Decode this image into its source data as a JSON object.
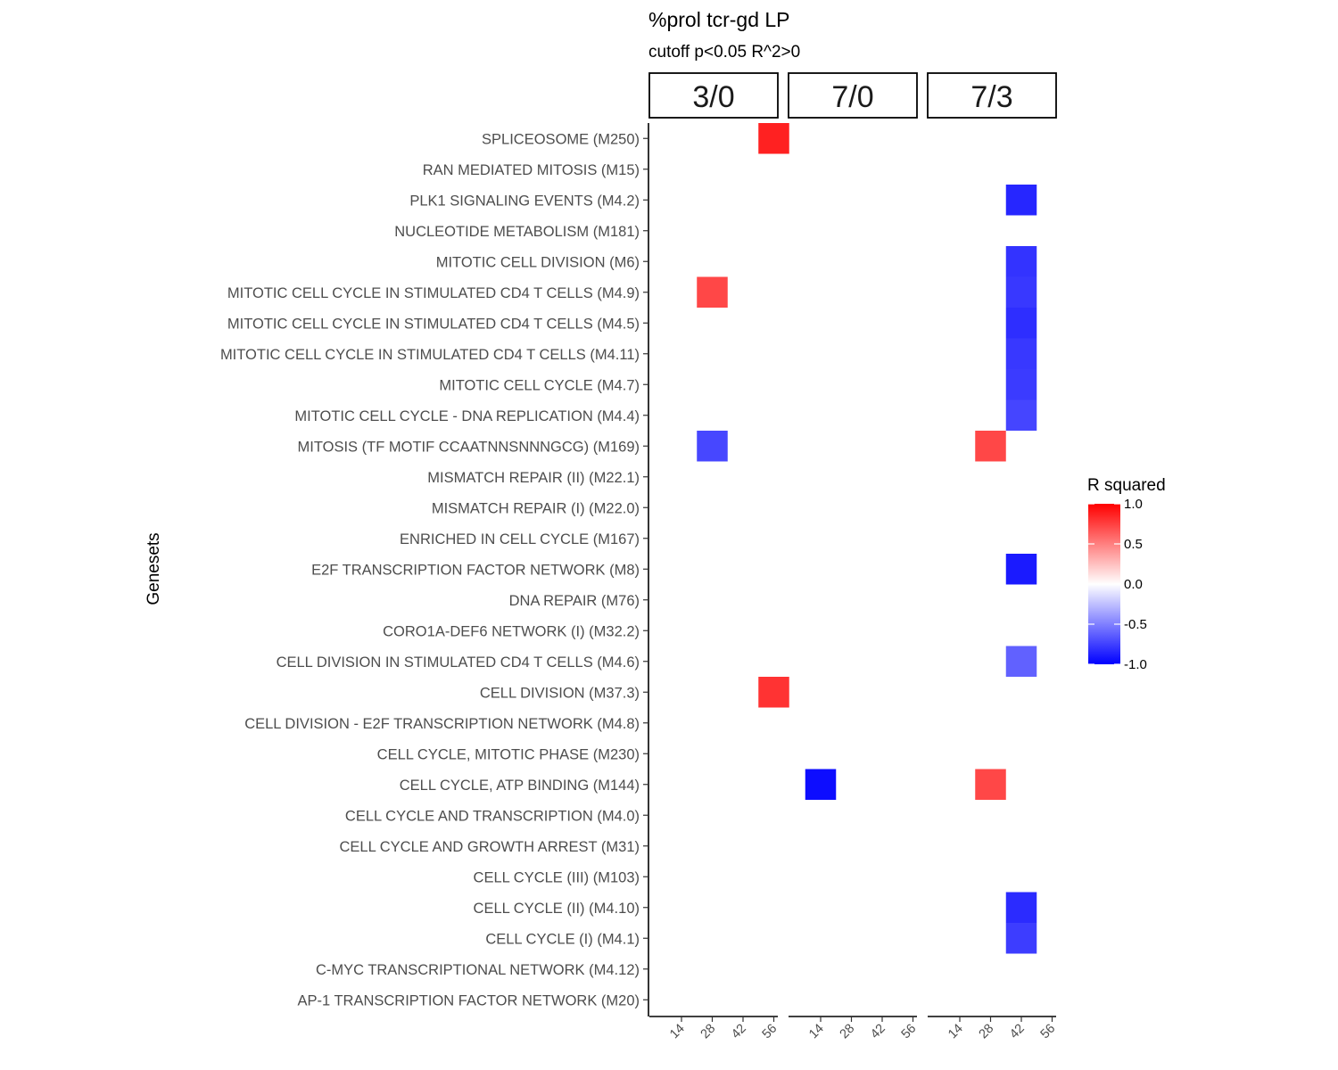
{
  "chart_data": {
    "type": "heatmap",
    "title": "%prol tcr-gd LP",
    "subtitle": "cutoff p<0.05 R^2>0",
    "ylabel": "Genesets",
    "xlabel": "",
    "facets": [
      "3/0",
      "7/0",
      "7/3"
    ],
    "x": [
      "14",
      "28",
      "42",
      "56"
    ],
    "y": [
      "SPLICEOSOME (M250)",
      "RAN MEDIATED MITOSIS (M15)",
      "PLK1 SIGNALING EVENTS (M4.2)",
      "NUCLEOTIDE METABOLISM (M181)",
      "MITOTIC CELL DIVISION (M6)",
      "MITOTIC CELL CYCLE IN STIMULATED CD4 T CELLS (M4.9)",
      "MITOTIC CELL CYCLE IN STIMULATED CD4 T CELLS (M4.5)",
      "MITOTIC CELL CYCLE IN STIMULATED CD4 T CELLS (M4.11)",
      "MITOTIC CELL CYCLE (M4.7)",
      "MITOTIC CELL CYCLE - DNA REPLICATION (M4.4)",
      "MITOSIS (TF MOTIF CCAATNNSNNNGCG) (M169)",
      "MISMATCH REPAIR (II) (M22.1)",
      "MISMATCH REPAIR (I) (M22.0)",
      "ENRICHED IN CELL CYCLE (M167)",
      "E2F TRANSCRIPTION FACTOR NETWORK (M8)",
      "DNA REPAIR (M76)",
      "CORO1A-DEF6 NETWORK (I) (M32.2)",
      "CELL DIVISION IN STIMULATED CD4 T CELLS (M4.6)",
      "CELL DIVISION (M37.3)",
      "CELL DIVISION - E2F TRANSCRIPTION NETWORK (M4.8)",
      "CELL CYCLE, MITOTIC PHASE (M230)",
      "CELL CYCLE, ATP BINDING (M144)",
      "CELL CYCLE AND TRANSCRIPTION (M4.0)",
      "CELL CYCLE AND GROWTH ARREST (M31)",
      "CELL CYCLE (III) (M103)",
      "CELL CYCLE (II) (M4.10)",
      "CELL CYCLE (I) (M4.1)",
      "C-MYC TRANSCRIPTIONAL NETWORK (M4.12)",
      "AP-1 TRANSCRIPTION FACTOR NETWORK (M20)"
    ],
    "cells": [
      {
        "facet": "3/0",
        "x": "56",
        "y": "SPLICEOSOME (M250)",
        "value": 0.87
      },
      {
        "facet": "3/0",
        "x": "28",
        "y": "MITOTIC CELL CYCLE IN STIMULATED CD4 T CELLS (M4.9)",
        "value": 0.72
      },
      {
        "facet": "3/0",
        "x": "28",
        "y": "MITOSIS (TF MOTIF CCAATNNSNNNGCG) (M169)",
        "value": -0.72
      },
      {
        "facet": "3/0",
        "x": "56",
        "y": "CELL DIVISION (M37.3)",
        "value": 0.8
      },
      {
        "facet": "7/0",
        "x": "14",
        "y": "CELL CYCLE, ATP BINDING (M144)",
        "value": -0.95
      },
      {
        "facet": "7/3",
        "x": "42",
        "y": "PLK1 SIGNALING EVENTS (M4.2)",
        "value": -0.85
      },
      {
        "facet": "7/3",
        "x": "42",
        "y": "MITOTIC CELL DIVISION (M6)",
        "value": -0.8
      },
      {
        "facet": "7/3",
        "x": "42",
        "y": "MITOTIC CELL CYCLE IN STIMULATED CD4 T CELLS (M4.9)",
        "value": -0.78
      },
      {
        "facet": "7/3",
        "x": "42",
        "y": "MITOTIC CELL CYCLE IN STIMULATED CD4 T CELLS (M4.5)",
        "value": -0.82
      },
      {
        "facet": "7/3",
        "x": "42",
        "y": "MITOTIC CELL CYCLE IN STIMULATED CD4 T CELLS (M4.11)",
        "value": -0.78
      },
      {
        "facet": "7/3",
        "x": "42",
        "y": "MITOTIC CELL CYCLE (M4.7)",
        "value": -0.77
      },
      {
        "facet": "7/3",
        "x": "42",
        "y": "MITOTIC CELL CYCLE - DNA REPLICATION (M4.4)",
        "value": -0.73
      },
      {
        "facet": "7/3",
        "x": "28",
        "y": "MITOSIS (TF MOTIF CCAATNNSNNNGCG) (M169)",
        "value": 0.72
      },
      {
        "facet": "7/3",
        "x": "42",
        "y": "E2F TRANSCRIPTION FACTOR NETWORK (M8)",
        "value": -0.9
      },
      {
        "facet": "7/3",
        "x": "42",
        "y": "CELL DIVISION IN STIMULATED CD4 T CELLS (M4.6)",
        "value": -0.62
      },
      {
        "facet": "7/3",
        "x": "28",
        "y": "CELL CYCLE, ATP BINDING (M144)",
        "value": 0.72
      },
      {
        "facet": "7/3",
        "x": "42",
        "y": "CELL CYCLE (II) (M4.10)",
        "value": -0.83
      },
      {
        "facet": "7/3",
        "x": "42",
        "y": "CELL CYCLE (I) (M4.1)",
        "value": -0.76
      }
    ],
    "legend": {
      "title": "R squared",
      "ticks": [
        "1.0",
        "0.5",
        "0.0",
        "-0.5",
        "-1.0"
      ],
      "tick_values": [
        1.0,
        0.5,
        0.0,
        -0.5,
        -1.0
      ],
      "range": [
        -1,
        1
      ],
      "colors": {
        "low": "#0000ff",
        "mid": "#ffffff",
        "high": "#ff0000"
      },
      "position": "right"
    },
    "grid": false
  }
}
